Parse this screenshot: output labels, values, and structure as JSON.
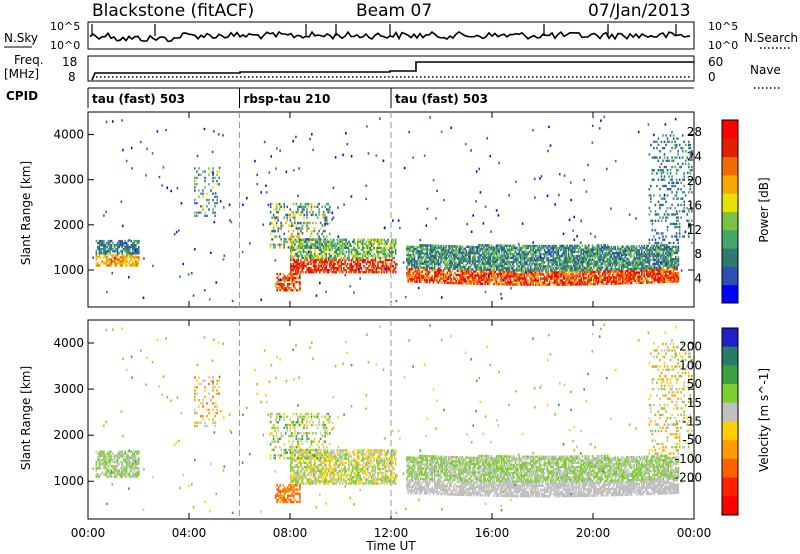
{
  "header": {
    "station": "Blackstone (fitACF)",
    "beam": "Beam 07",
    "date": "07/Jan/2013"
  },
  "panels": {
    "nsky_label": "N.Sky",
    "nsearch_label": "N.Search",
    "nsky_ticks": [
      "10^5",
      "10^0"
    ],
    "nsearch_ticks": [
      "10^5",
      "10^0"
    ],
    "freq_label": "Freq.",
    "freq_unit": "[MHz]",
    "freq_ticks": [
      "18",
      "8"
    ],
    "nave_label": "Nave",
    "nave_ticks": [
      "60",
      "0"
    ],
    "cpid_label": "CPID",
    "cpid_segments": [
      {
        "label": "tau (fast) 503",
        "start_hour": 0,
        "end_hour": 6
      },
      {
        "label": "rbsp-tau 210",
        "start_hour": 6,
        "end_hour": 12
      },
      {
        "label": "tau (fast) 503",
        "start_hour": 12,
        "end_hour": 24
      }
    ]
  },
  "colors": {
    "power": [
      "#0000ff",
      "#2e4fb0",
      "#2f7a6e",
      "#42a86a",
      "#7cc242",
      "#e8e000",
      "#f5a800",
      "#f06c00",
      "#e02000",
      "#ff0000"
    ],
    "velocity": [
      "#2020c8",
      "#2a7a6a",
      "#3aa040",
      "#7cd02c",
      "#c0c0c0",
      "#ffd000",
      "#ff9a00",
      "#ff6000",
      "#ff2000",
      "#ff0000"
    ]
  },
  "chart_data": [
    {
      "type": "heatmap",
      "name": "power",
      "ylabel": "Slant Range [km]",
      "xlabel": "Time UT",
      "x_ticks": [
        "00:00",
        "04:00",
        "08:00",
        "12:00",
        "16:00",
        "20:00",
        "00:00"
      ],
      "xlim_hours": [
        0,
        24
      ],
      "y_ticks": [
        1000,
        2000,
        3000,
        4000
      ],
      "ylim": [
        180,
        4500
      ],
      "colorbar_label": "Power [dB]",
      "colorbar_ticks": [
        4,
        8,
        12,
        16,
        20,
        24,
        28
      ],
      "colorbar_range": [
        0,
        30
      ]
    },
    {
      "type": "heatmap",
      "name": "velocity",
      "ylabel": "Slant Range [km]",
      "xlabel": "Time UT",
      "x_ticks": [
        "00:00",
        "04:00",
        "08:00",
        "12:00",
        "16:00",
        "20:00",
        "00:00"
      ],
      "xlim_hours": [
        0,
        24
      ],
      "y_ticks": [
        1000,
        2000,
        3000,
        4000
      ],
      "ylim": [
        180,
        4500
      ],
      "colorbar_label": "Velocity [m s^-1]",
      "colorbar_ticks": [
        200,
        100,
        50,
        15,
        -15,
        -50,
        -100,
        -200
      ],
      "colorbar_range": [
        -250,
        250
      ]
    }
  ]
}
